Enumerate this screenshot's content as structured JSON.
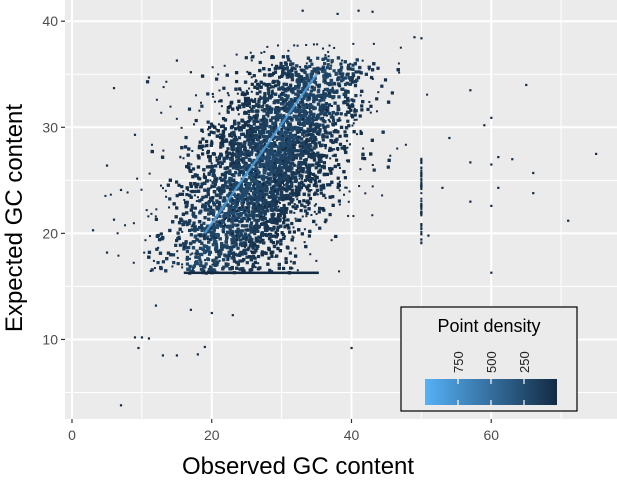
{
  "chart_data": {
    "type": "heatmap",
    "subtype": "hexbin-scatter",
    "xlabel": "Observed GC content",
    "ylabel": "Expected GC content",
    "xlim": [
      -1,
      78
    ],
    "ylim": [
      2.5,
      42
    ],
    "x_ticks": [
      0,
      20,
      40,
      60
    ],
    "y_ticks": [
      10,
      20,
      30,
      40
    ],
    "x_tick_labels": [
      "0",
      "20",
      "40",
      "60"
    ],
    "y_tick_labels": [
      "10",
      "20",
      "30",
      "40"
    ],
    "grid": true,
    "colors": {
      "panel_background": "#ebebeb",
      "grid": "#ffffff",
      "low_density": "#132b43",
      "high_density": "#56b1f7"
    },
    "dense_cloud": {
      "description_points": [
        {
          "x": 18,
          "y": 17
        },
        {
          "x": 36,
          "y": 17
        },
        {
          "x": 41,
          "y": 20
        },
        {
          "x": 45,
          "y": 24
        },
        {
          "x": 44,
          "y": 33
        },
        {
          "x": 40,
          "y": 36
        },
        {
          "x": 33,
          "y": 37
        },
        {
          "x": 22,
          "y": 33
        },
        {
          "x": 12,
          "y": 26
        },
        {
          "x": 15,
          "y": 19
        }
      ]
    },
    "diagonal_ridge": {
      "x": [
        19,
        35
      ],
      "y": [
        20,
        35
      ]
    },
    "outliers": [
      {
        "x": 7,
        "y": 3.8
      },
      {
        "x": 9,
        "y": 10.2
      },
      {
        "x": 10,
        "y": 10.2
      },
      {
        "x": 11,
        "y": 10.1
      },
      {
        "x": 9.5,
        "y": 9.2
      },
      {
        "x": 13,
        "y": 8.5
      },
      {
        "x": 15,
        "y": 8.5
      },
      {
        "x": 18,
        "y": 8.6
      },
      {
        "x": 19,
        "y": 9.3
      },
      {
        "x": 17,
        "y": 12.8
      },
      {
        "x": 20,
        "y": 12.5
      },
      {
        "x": 23,
        "y": 12.3
      },
      {
        "x": 12,
        "y": 13.2
      },
      {
        "x": 40,
        "y": 9.2
      },
      {
        "x": 3,
        "y": 20.3
      },
      {
        "x": 5,
        "y": 18.2
      },
      {
        "x": 6,
        "y": 21.3
      },
      {
        "x": 7,
        "y": 24.1
      },
      {
        "x": 5,
        "y": 26.4
      },
      {
        "x": 9,
        "y": 29.3
      },
      {
        "x": 6,
        "y": 33.7
      },
      {
        "x": 11,
        "y": 34.7
      },
      {
        "x": 15,
        "y": 36.3
      },
      {
        "x": 17,
        "y": 35.2
      },
      {
        "x": 33,
        "y": 41
      },
      {
        "x": 38,
        "y": 40.7
      },
      {
        "x": 41,
        "y": 41
      },
      {
        "x": 43,
        "y": 40.9
      },
      {
        "x": 49,
        "y": 38.5
      },
      {
        "x": 50,
        "y": 38.4
      },
      {
        "x": 50,
        "y": 22
      },
      {
        "x": 50,
        "y": 24.5
      },
      {
        "x": 51,
        "y": 19.8
      },
      {
        "x": 53,
        "y": 24.3
      },
      {
        "x": 54,
        "y": 29
      },
      {
        "x": 57,
        "y": 26.7
      },
      {
        "x": 57,
        "y": 33.5
      },
      {
        "x": 59,
        "y": 30.2
      },
      {
        "x": 60,
        "y": 26.5
      },
      {
        "x": 60,
        "y": 30.9
      },
      {
        "x": 61,
        "y": 27.2
      },
      {
        "x": 63,
        "y": 27
      },
      {
        "x": 61,
        "y": 24.3
      },
      {
        "x": 66,
        "y": 25.7
      },
      {
        "x": 66,
        "y": 23.8
      },
      {
        "x": 71,
        "y": 21.2
      },
      {
        "x": 75,
        "y": 27.5
      },
      {
        "x": 60,
        "y": 16.3
      },
      {
        "x": 57,
        "y": 23
      },
      {
        "x": 60,
        "y": 22.6
      },
      {
        "x": 65,
        "y": 34
      }
    ],
    "legend": {
      "title": "Point density",
      "placement": "bottom-right inside panel",
      "tick_values": [
        750,
        500,
        250
      ],
      "tick_labels": [
        "750",
        "500",
        "250"
      ],
      "range": [
        0,
        1000
      ],
      "direction": "reversed"
    }
  }
}
